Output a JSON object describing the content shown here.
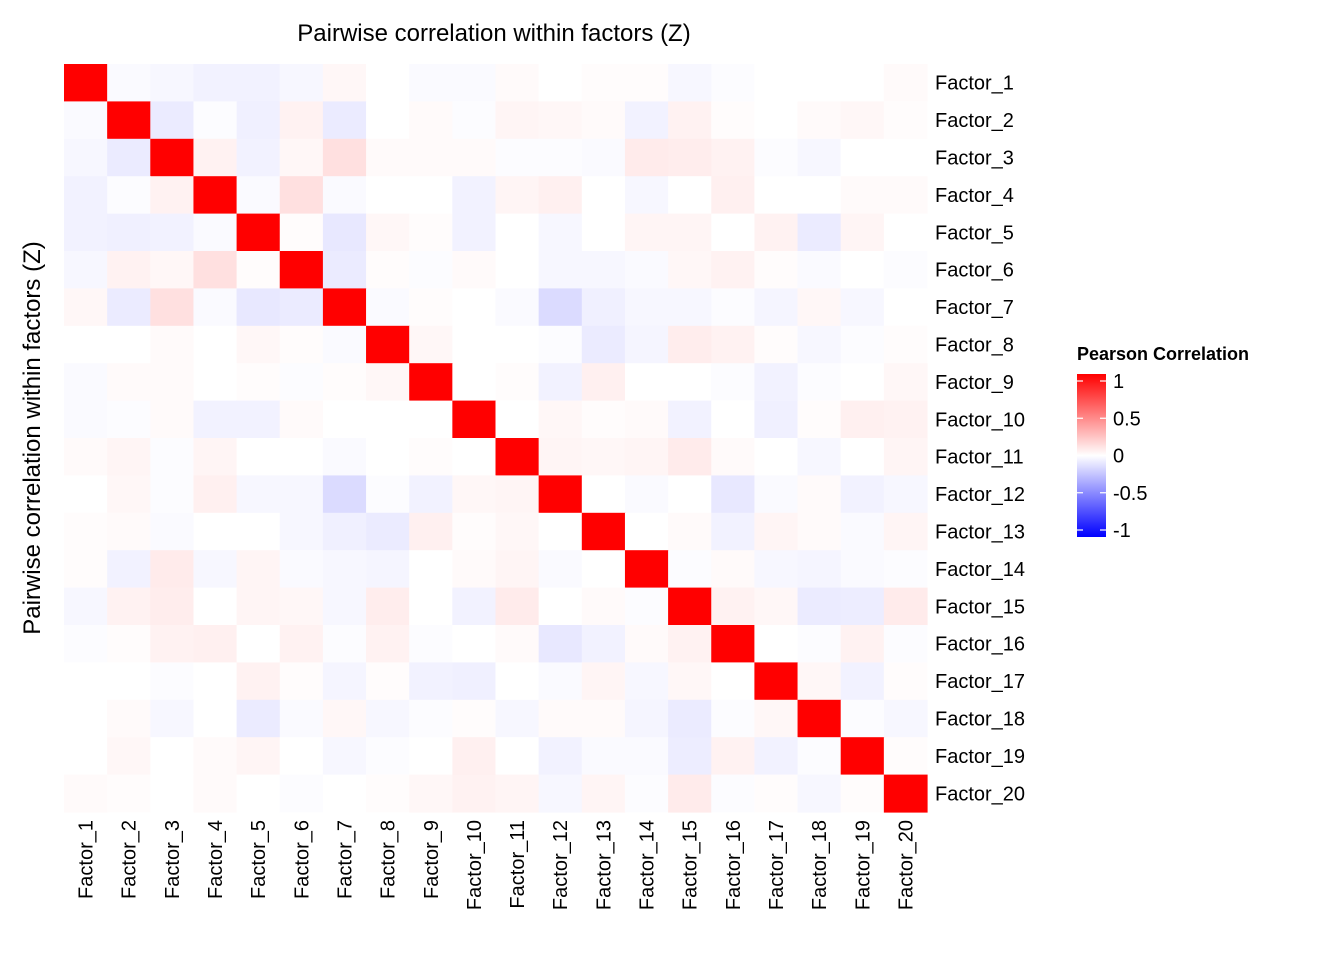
{
  "chart_data": {
    "type": "heatmap",
    "title": "Pairwise correlation within factors (Z)",
    "xlabel": "",
    "ylabel": "Pairwise correlation within factors (Z)",
    "labels": [
      "Factor_1",
      "Factor_2",
      "Factor_3",
      "Factor_4",
      "Factor_5",
      "Factor_6",
      "Factor_7",
      "Factor_8",
      "Factor_9",
      "Factor_10",
      "Factor_11",
      "Factor_12",
      "Factor_13",
      "Factor_14",
      "Factor_15",
      "Factor_16",
      "Factor_17",
      "Factor_18",
      "Factor_19",
      "Factor_20"
    ],
    "values": [
      [
        1,
        -0.02,
        -0.03,
        -0.05,
        -0.05,
        -0.03,
        0.03,
        0,
        -0.02,
        -0.02,
        0.02,
        0,
        0.01,
        0.01,
        -0.03,
        -0.01,
        0,
        0,
        0,
        0.02
      ],
      [
        -0.02,
        1,
        -0.08,
        -0.01,
        -0.06,
        0.05,
        -0.08,
        0,
        0.02,
        -0.01,
        0.04,
        0.03,
        0.02,
        -0.05,
        0.05,
        0.01,
        0,
        0.02,
        0.03,
        0.01
      ],
      [
        -0.03,
        -0.08,
        1,
        0.05,
        -0.05,
        0.03,
        0.12,
        0.02,
        0.02,
        0.02,
        -0.01,
        -0.01,
        -0.02,
        0.08,
        0.07,
        0.05,
        -0.01,
        -0.03,
        0,
        0
      ],
      [
        -0.05,
        -0.01,
        0.05,
        1,
        -0.02,
        0.12,
        -0.02,
        0,
        0,
        -0.05,
        0.04,
        0.06,
        0,
        -0.03,
        0,
        0.06,
        0,
        0,
        0.02,
        0.02
      ],
      [
        -0.05,
        -0.06,
        -0.05,
        -0.02,
        1,
        0.01,
        -0.09,
        0.03,
        0.01,
        -0.05,
        0,
        -0.03,
        0,
        0.04,
        0.04,
        0,
        0.05,
        -0.08,
        0.04,
        0
      ],
      [
        -0.03,
        0.05,
        0.03,
        0.12,
        0.01,
        1,
        -0.08,
        0.01,
        -0.01,
        0.02,
        0,
        -0.03,
        -0.03,
        -0.02,
        0.03,
        0.05,
        0.01,
        -0.02,
        0,
        -0.01
      ],
      [
        0.03,
        -0.08,
        0.12,
        -0.02,
        -0.09,
        -0.08,
        1,
        -0.02,
        0.01,
        0,
        -0.02,
        -0.14,
        -0.06,
        -0.03,
        -0.03,
        -0.01,
        -0.04,
        0.03,
        -0.03,
        0
      ],
      [
        0,
        0,
        0.02,
        0,
        0.03,
        0.01,
        -0.02,
        1,
        0.03,
        0,
        0,
        -0.01,
        -0.08,
        -0.04,
        0.07,
        0.05,
        0.01,
        -0.03,
        -0.01,
        0.01
      ],
      [
        -0.02,
        0.02,
        0.02,
        0,
        0.01,
        -0.01,
        0.01,
        0.03,
        1,
        0,
        0.01,
        -0.05,
        0.06,
        0,
        0,
        -0.01,
        -0.05,
        -0.01,
        0,
        0.03
      ],
      [
        -0.02,
        -0.01,
        0.02,
        -0.05,
        -0.05,
        0.02,
        0,
        0,
        0,
        1,
        0,
        0.03,
        0.01,
        0.02,
        -0.05,
        0,
        -0.06,
        0.01,
        0.06,
        0.05
      ],
      [
        0.02,
        0.04,
        -0.01,
        0.04,
        0,
        0,
        -0.02,
        0,
        0.01,
        0,
        1,
        0.04,
        0.03,
        0.04,
        0.08,
        0.02,
        0,
        -0.03,
        0,
        0.04
      ],
      [
        0,
        0.03,
        -0.01,
        0.06,
        -0.03,
        -0.03,
        -0.14,
        -0.01,
        -0.05,
        0.03,
        0.04,
        1,
        0,
        -0.02,
        0,
        -0.09,
        -0.02,
        0.02,
        -0.05,
        -0.03
      ],
      [
        0.01,
        0.02,
        -0.02,
        0,
        0,
        -0.03,
        -0.06,
        -0.08,
        0.06,
        0.01,
        0.03,
        0,
        1,
        0,
        0.02,
        -0.05,
        0.04,
        0.02,
        -0.02,
        0.04
      ],
      [
        0.01,
        -0.05,
        0.08,
        -0.03,
        0.04,
        -0.02,
        -0.03,
        -0.04,
        0,
        0.02,
        0.04,
        -0.02,
        0,
        1,
        -0.01,
        0.02,
        -0.03,
        -0.04,
        -0.02,
        -0.01
      ],
      [
        -0.03,
        0.05,
        0.07,
        0,
        0.04,
        0.03,
        -0.03,
        0.07,
        0,
        -0.05,
        0.08,
        0,
        0.02,
        -0.01,
        1,
        0.05,
        0.03,
        -0.08,
        -0.07,
        0.08
      ],
      [
        -0.01,
        0.01,
        0.05,
        0.06,
        0,
        0.05,
        -0.01,
        0.05,
        -0.01,
        0,
        0.02,
        -0.09,
        -0.05,
        0.02,
        0.05,
        1,
        0,
        -0.01,
        0.05,
        -0.01
      ],
      [
        0,
        0,
        -0.01,
        0,
        0.05,
        0.01,
        -0.04,
        0.01,
        -0.05,
        -0.06,
        0,
        -0.02,
        0.04,
        -0.03,
        0.03,
        0,
        1,
        0.03,
        -0.05,
        0.01
      ],
      [
        0,
        0.02,
        -0.03,
        0,
        -0.08,
        -0.02,
        0.03,
        -0.03,
        -0.01,
        0.01,
        -0.03,
        0.02,
        0.02,
        -0.04,
        -0.08,
        -0.01,
        0.03,
        1,
        -0.01,
        -0.03
      ],
      [
        0,
        0.03,
        0,
        0.02,
        0.04,
        0,
        -0.03,
        -0.01,
        0,
        0.06,
        0,
        -0.05,
        -0.02,
        -0.02,
        -0.07,
        0.05,
        -0.05,
        -0.01,
        1,
        0.01
      ],
      [
        0.02,
        0.01,
        0,
        0.02,
        0,
        -0.01,
        0,
        0.01,
        0.03,
        0.05,
        0.04,
        -0.03,
        0.04,
        -0.01,
        0.08,
        -0.01,
        0.01,
        -0.03,
        0.01,
        1
      ]
    ],
    "zlim": [
      -1,
      1
    ],
    "legend": {
      "title": "Pearson Correlation",
      "position": "right",
      "ticks": [
        1,
        0.5,
        0,
        -0.5,
        -1
      ],
      "tick_labels": [
        "1",
        "0.5",
        "0",
        "-0.5",
        "-1"
      ]
    },
    "colors": {
      "low": "#0000ff",
      "mid": "#ffffff",
      "high": "#ff0000"
    },
    "grid": false
  }
}
